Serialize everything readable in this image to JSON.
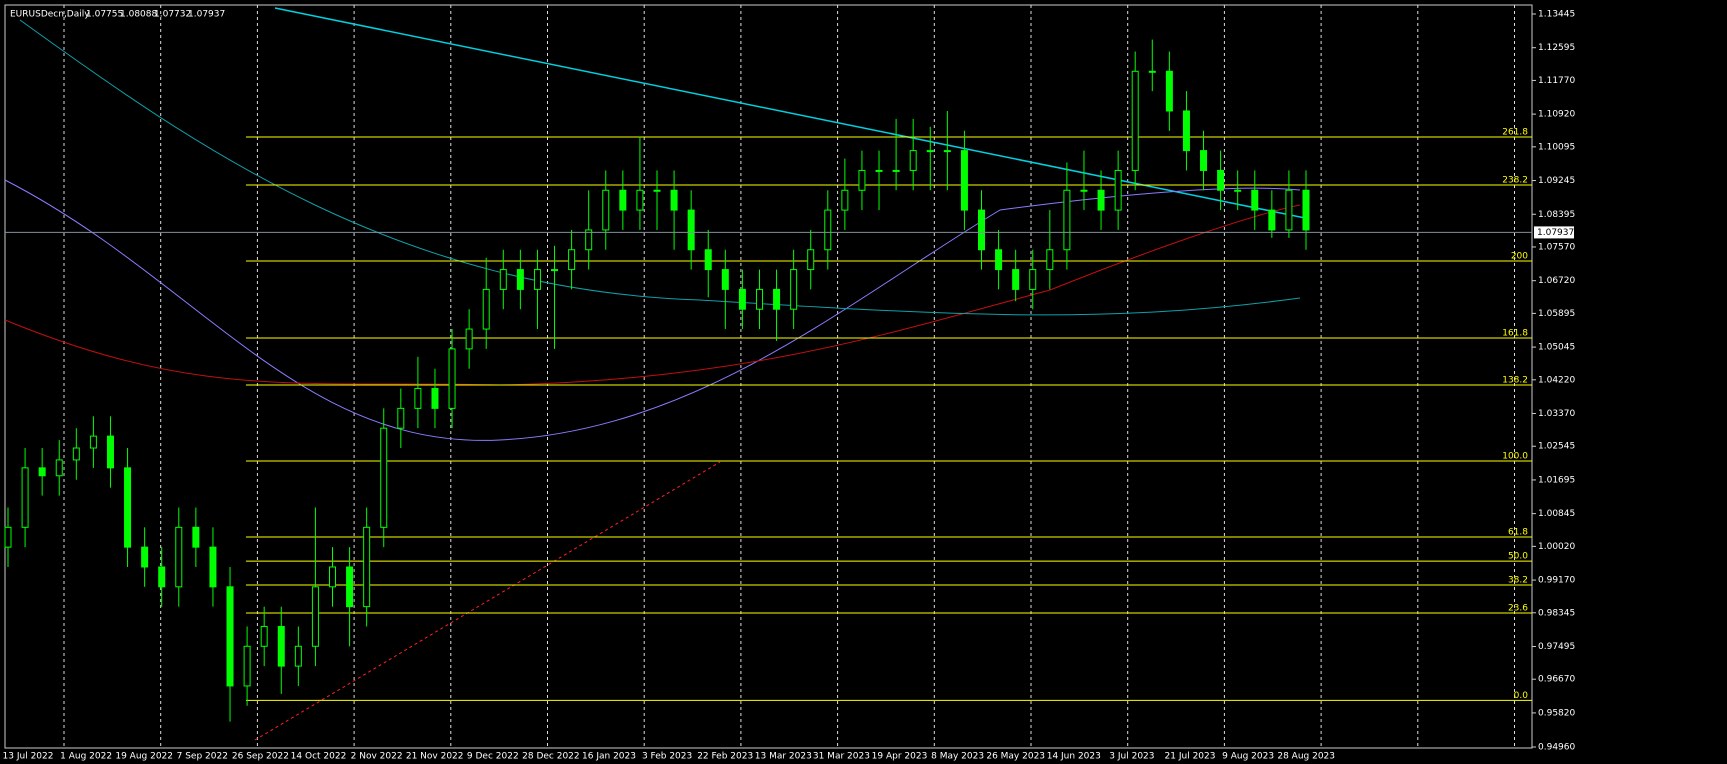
{
  "header": {
    "symbol": "EURUSDecn,Daily",
    "ohlc": [
      1.07755,
      1.08088,
      1.07732,
      1.07937
    ]
  },
  "chart_data": {
    "type": "candlestick",
    "color": "#00ff00",
    "categories": [
      "13 Jul 2022",
      "1 Aug 2022",
      "19 Aug 2022",
      "7 Sep 2022",
      "26 Sep 2022",
      "14 Oct 2022",
      "2 Nov 2022",
      "21 Nov 2022",
      "9 Dec 2022",
      "28 Dec 2022",
      "16 Jan 2023",
      "3 Feb 2023",
      "22 Feb 2023",
      "13 Mar 2023",
      "31 Mar 2023",
      "19 Apr 2023",
      "8 May 2023",
      "26 May 2023",
      "14 Jun 2023",
      "3 Jul 2023",
      "21 Jul 2023",
      "9 Aug 2023",
      "28 Aug 2023"
    ],
    "open": [
      1.0,
      1.005,
      1.02,
      1.018,
      1.022,
      1.025,
      1.028,
      1.02,
      1.0,
      0.995,
      0.99,
      1.005,
      1.0,
      0.99,
      0.965,
      0.975,
      0.98,
      0.97,
      0.975,
      0.99,
      0.995,
      0.985,
      1.005,
      1.03,
      1.035,
      1.04,
      1.035,
      1.05,
      1.055,
      1.065,
      1.07,
      1.065,
      1.07,
      1.07,
      1.075,
      1.08,
      1.09,
      1.085,
      1.09,
      1.09,
      1.085,
      1.075,
      1.07,
      1.065,
      1.06,
      1.065,
      1.06,
      1.07,
      1.075,
      1.085,
      1.09,
      1.095,
      1.095,
      1.095,
      1.1,
      1.1,
      1.1,
      1.085,
      1.075,
      1.07,
      1.065,
      1.07,
      1.075,
      1.09,
      1.09,
      1.085,
      1.095,
      1.12,
      1.12,
      1.11,
      1.1,
      1.095,
      1.09,
      1.09,
      1.085,
      1.08,
      1.09
    ],
    "high": [
      1.01,
      1.025,
      1.025,
      1.027,
      1.03,
      1.033,
      1.033,
      1.025,
      1.005,
      1.0,
      1.01,
      1.01,
      1.005,
      0.995,
      0.98,
      0.985,
      0.985,
      0.98,
      1.01,
      1.0,
      1.0,
      1.01,
      1.035,
      1.04,
      1.048,
      1.045,
      1.055,
      1.06,
      1.073,
      1.075,
      1.075,
      1.075,
      1.076,
      1.08,
      1.09,
      1.095,
      1.095,
      1.1035,
      1.095,
      1.095,
      1.09,
      1.08,
      1.075,
      1.07,
      1.07,
      1.07,
      1.075,
      1.08,
      1.09,
      1.098,
      1.1,
      1.1,
      1.108,
      1.108,
      1.106,
      1.11,
      1.105,
      1.09,
      1.08,
      1.075,
      1.075,
      1.085,
      1.097,
      1.1,
      1.095,
      1.1,
      1.125,
      1.128,
      1.125,
      1.115,
      1.105,
      1.1,
      1.095,
      1.095,
      1.09,
      1.095,
      1.095
    ],
    "low": [
      0.995,
      1.0,
      1.013,
      1.013,
      1.017,
      1.02,
      1.015,
      0.995,
      0.99,
      0.985,
      0.985,
      0.995,
      0.985,
      0.956,
      0.96,
      0.97,
      0.963,
      0.965,
      0.97,
      0.985,
      0.975,
      0.98,
      1.0,
      1.025,
      1.03,
      1.03,
      1.03,
      1.045,
      1.05,
      1.06,
      1.06,
      1.055,
      1.05,
      1.065,
      1.07,
      1.075,
      1.08,
      1.08,
      1.08,
      1.075,
      1.07,
      1.063,
      1.055,
      1.055,
      1.055,
      1.052,
      1.055,
      1.065,
      1.07,
      1.08,
      1.085,
      1.085,
      1.09,
      1.09,
      1.09,
      1.09,
      1.08,
      1.07,
      1.065,
      1.062,
      1.06,
      1.065,
      1.07,
      1.085,
      1.08,
      1.08,
      1.09,
      1.115,
      1.105,
      1.095,
      1.09,
      1.085,
      1.085,
      1.08,
      1.078,
      1.078,
      1.075
    ],
    "close": [
      1.005,
      1.02,
      1.018,
      1.022,
      1.025,
      1.028,
      1.02,
      1.0,
      0.995,
      0.99,
      1.005,
      1.0,
      0.99,
      0.965,
      0.975,
      0.98,
      0.97,
      0.975,
      0.99,
      0.995,
      0.985,
      1.005,
      1.03,
      1.035,
      1.04,
      1.035,
      1.05,
      1.055,
      1.065,
      1.07,
      1.065,
      1.07,
      1.07,
      1.075,
      1.08,
      1.09,
      1.085,
      1.09,
      1.09,
      1.085,
      1.075,
      1.07,
      1.065,
      1.06,
      1.065,
      1.06,
      1.07,
      1.075,
      1.085,
      1.09,
      1.095,
      1.095,
      1.095,
      1.1,
      1.1,
      1.1,
      1.085,
      1.075,
      1.07,
      1.065,
      1.07,
      1.075,
      1.09,
      1.09,
      1.085,
      1.095,
      1.12,
      1.12,
      1.11,
      1.1,
      1.095,
      1.09,
      1.09,
      1.085,
      1.08,
      1.09,
      1.08
    ],
    "current_price": 1.07937,
    "ylim": [
      0.94935,
      1.13672
    ],
    "yticks": [
      1.13445,
      1.12595,
      {
        "value": 1.1177,
        "label": "1.11770"
      },
      {
        "value": 1.1092,
        "label": "1.10920"
      },
      1.10095,
      1.09245,
      1.08395,
      {
        "value": 1.0757,
        "label": "1.07570"
      },
      {
        "value": 1.0672,
        "label": "1.06720"
      },
      1.05895,
      1.05045,
      {
        "value": 1.0422,
        "label": "1.04220"
      },
      {
        "value": 1.0337,
        "label": "1.03370"
      },
      1.02545,
      1.01695,
      1.00845,
      {
        "value": 1.0002,
        "label": "1.00020"
      },
      {
        "value": 0.9917,
        "label": "0.99170"
      },
      0.98345,
      0.97495,
      {
        "value": 0.9667,
        "label": "0.96670"
      },
      {
        "value": 0.9582,
        "label": "0.95820"
      },
      {
        "value": 0.9496,
        "label": "0.94960"
      }
    ],
    "fib_levels": [
      {
        "label": "261.8",
        "price": 1.10343
      },
      {
        "label": "238.2",
        "price": 1.09132
      },
      {
        "label": "200",
        "price": 1.07216
      },
      {
        "label": "161.8",
        "price": 1.05273
      },
      {
        "label": "138.2",
        "price": 1.04088
      },
      {
        "label": "100.0",
        "price": 1.02172
      },
      {
        "label": "61.8",
        "price": 1.00255
      },
      {
        "label": "50.0",
        "price": 0.99649
      },
      {
        "label": "38.2",
        "price": 0.99044
      },
      {
        "label": "23.6",
        "price": 0.98338
      },
      {
        "label": "0.0",
        "price": 0.96135
      }
    ],
    "fib_color": "#ffff00"
  }
}
